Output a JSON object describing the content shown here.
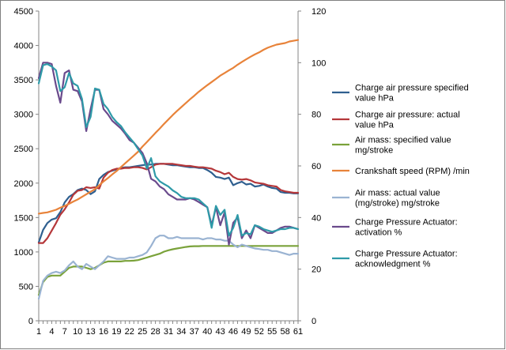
{
  "chart_data": {
    "type": "line",
    "title": "",
    "xlabel": "",
    "ylabel": "",
    "x": [
      1,
      2,
      3,
      4,
      5,
      6,
      7,
      8,
      9,
      10,
      11,
      12,
      13,
      14,
      15,
      16,
      17,
      18,
      19,
      20,
      21,
      22,
      23,
      24,
      25,
      26,
      27,
      28,
      29,
      30,
      31,
      32,
      33,
      34,
      35,
      36,
      37,
      38,
      39,
      40,
      41,
      42,
      43,
      44,
      45,
      46,
      47,
      48,
      49,
      50,
      51,
      52,
      53,
      54,
      55,
      56,
      57,
      58,
      59,
      60,
      61
    ],
    "x_tick_labels": [
      "1",
      "4",
      "7",
      "10",
      "13",
      "16",
      "19",
      "22",
      "25",
      "28",
      "31",
      "34",
      "37",
      "40",
      "43",
      "46",
      "49",
      "52",
      "55",
      "58",
      "61"
    ],
    "y_left": {
      "ylim": [
        0,
        4500
      ],
      "ticks": [
        "0",
        "500",
        "1000",
        "1500",
        "2000",
        "2500",
        "3000",
        "3500",
        "4000",
        "4500"
      ]
    },
    "y_right": {
      "ylim": [
        0,
        120
      ],
      "ticks": [
        "0",
        "20",
        "40",
        "60",
        "80",
        "100",
        "120"
      ]
    },
    "grid": false,
    "legend_position": "right",
    "series": [
      {
        "name": "Charge air pressure specified value  hPa",
        "axis": "left",
        "color": "#2f5f8f",
        "values": [
          1140,
          1320,
          1420,
          1470,
          1490,
          1580,
          1720,
          1800,
          1840,
          1900,
          1920,
          1900,
          1840,
          1880,
          2060,
          2120,
          2160,
          2180,
          2200,
          2220,
          2230,
          2230,
          2240,
          2250,
          2260,
          2270,
          2270,
          2280,
          2280,
          2280,
          2270,
          2260,
          2260,
          2250,
          2240,
          2230,
          2230,
          2220,
          2220,
          2190,
          2150,
          2090,
          2080,
          2060,
          2080,
          1970,
          2000,
          2020,
          1980,
          1990,
          1950,
          1960,
          1980,
          1950,
          1930,
          1920,
          1870,
          1860,
          1860,
          1850,
          1850
        ]
      },
      {
        "name": "Charge air pressure:  actual value  hPa",
        "axis": "left",
        "color": "#b5373a",
        "values": [
          1130,
          1130,
          1200,
          1310,
          1420,
          1540,
          1620,
          1720,
          1830,
          1890,
          1900,
          1940,
          1930,
          1940,
          1920,
          2080,
          2150,
          2190,
          2210,
          2210,
          2220,
          2220,
          2230,
          2230,
          2220,
          2200,
          2230,
          2270,
          2280,
          2280,
          2280,
          2280,
          2270,
          2260,
          2250,
          2250,
          2240,
          2230,
          2230,
          2220,
          2210,
          2180,
          2160,
          2130,
          2150,
          2090,
          2060,
          2050,
          2060,
          2040,
          2010,
          2000,
          1990,
          1970,
          1960,
          1950,
          1900,
          1880,
          1870,
          1860,
          1860
        ]
      },
      {
        "name": "Air mass: specified value  mg/stroke",
        "axis": "right",
        "color": "#7aa23a",
        "values": [
          10,
          15,
          17,
          17.5,
          17.5,
          17.5,
          19,
          20.5,
          21,
          21,
          21,
          20.5,
          20,
          20.5,
          21.5,
          22.5,
          23,
          23,
          23,
          23,
          23.2,
          23.2,
          23.3,
          23.5,
          24,
          24.5,
          25,
          25.5,
          26,
          26.8,
          27.3,
          27.7,
          28,
          28.3,
          28.6,
          28.8,
          28.9,
          28.9,
          29,
          29,
          29,
          29,
          29,
          29,
          29,
          29,
          29,
          29,
          29,
          29,
          29,
          29,
          29,
          29,
          29,
          29,
          29,
          29,
          29,
          29,
          29
        ]
      },
      {
        "name": "Crankshaft speed (RPM)  /min",
        "axis": "right",
        "color": "#e8833a",
        "values": [
          41.5,
          41.8,
          42,
          42.5,
          43,
          43.8,
          44.5,
          45.3,
          46.2,
          47,
          48,
          49,
          50,
          51,
          52.5,
          54,
          55.3,
          56.7,
          58,
          59.5,
          61,
          62.5,
          64,
          65.5,
          67.5,
          69.2,
          71,
          72.8,
          74.5,
          76.3,
          78,
          79.7,
          81.3,
          82.8,
          84.3,
          85.8,
          87.2,
          88.7,
          90,
          91.3,
          92.5,
          93.7,
          95,
          96,
          97,
          98,
          99.2,
          100.3,
          101.3,
          102.3,
          103.2,
          104,
          105,
          105.8,
          106.4,
          107,
          107.3,
          107.6,
          108.2,
          108.5,
          108.8
        ]
      },
      {
        "name": "Air mass: actual value (mg/stroke) mg/stroke",
        "axis": "right",
        "color": "#9ab3d2",
        "values": [
          8.5,
          15.5,
          17.5,
          18.5,
          19,
          18.5,
          19.5,
          21.5,
          23,
          21,
          20,
          22,
          21,
          20,
          21.5,
          23,
          25,
          24.5,
          24,
          24,
          24,
          24.5,
          24.5,
          25,
          25.5,
          26.5,
          29,
          32,
          33,
          33,
          32,
          32,
          32.5,
          32,
          32,
          32,
          32,
          32,
          31.5,
          32,
          32,
          31.5,
          31.5,
          31,
          31,
          29.5,
          28.5,
          29.5,
          29,
          28.5,
          28,
          27.8,
          27.5,
          27.5,
          27,
          27,
          26.5,
          26,
          25.5,
          26,
          26
        ]
      },
      {
        "name": "Charge Pressure Actuator: activation  %",
        "axis": "right",
        "color": "#6a4a8c",
        "values": [
          94,
          100,
          100,
          99.5,
          91,
          84.5,
          96,
          97,
          89.5,
          89,
          85,
          73.5,
          82,
          89.5,
          89.5,
          82,
          80,
          77.5,
          76,
          74.5,
          72.5,
          70,
          69,
          67,
          65,
          61,
          55,
          54,
          52,
          51,
          49,
          48,
          47,
          47,
          47,
          47.5,
          47,
          46,
          45,
          44,
          37,
          44,
          37,
          42,
          29.5,
          38,
          40,
          32,
          35,
          32,
          37,
          36,
          35,
          34,
          34,
          35,
          36,
          36.5,
          36.5,
          36,
          35.5
        ]
      },
      {
        "name": "Charge Pressure Actuator:  acknowledgment  %",
        "axis": "right",
        "color": "#2e9aa8",
        "values": [
          92,
          99,
          99.5,
          98.5,
          97,
          89,
          90.5,
          96,
          92,
          91,
          86,
          75,
          79,
          90,
          89.5,
          84,
          82,
          79,
          77,
          75.5,
          73,
          71,
          69,
          66.5,
          64,
          59,
          63,
          56,
          54,
          53,
          52,
          50.5,
          49.5,
          48,
          47.5,
          47.5,
          47.5,
          47,
          45.5,
          44,
          36,
          44.5,
          41,
          43,
          33,
          36,
          41,
          33,
          34,
          33.5,
          37,
          36.5,
          35.5,
          35,
          34.5,
          35,
          35.5,
          35.5,
          36,
          36,
          35.5
        ]
      }
    ]
  }
}
